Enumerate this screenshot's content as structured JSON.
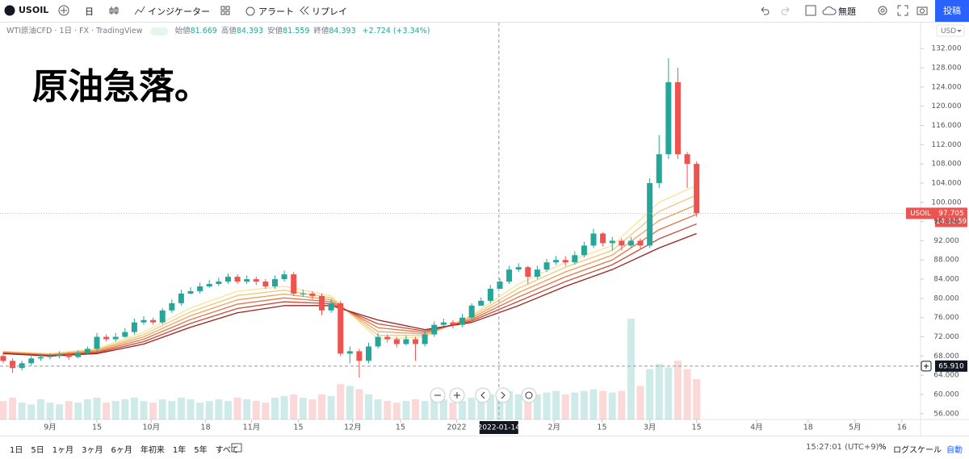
{
  "toolbar": {
    "symbol": "USOIL",
    "interval": "日",
    "indicators": "インジケーター",
    "alert": "アラート",
    "replay": "リプレイ",
    "layout_name": "無題",
    "publish": "投稿"
  },
  "chart_data": {
    "type": "candlestick",
    "instrument": "WTI原油CFD · 1日 · FX · TradingView",
    "ohlc_legend": [
      {
        "label": "始値",
        "value": "81.669"
      },
      {
        "label": "高値",
        "value": "84.393"
      },
      {
        "label": "安値",
        "value": "81.559"
      },
      {
        "label": "終値",
        "value": "84.393"
      }
    ],
    "change": "+2.724 (+3.34%)",
    "annotation": "原油急落。",
    "currency": "USD",
    "x": [
      0,
      1,
      2,
      3,
      4,
      5,
      6,
      7,
      8,
      9,
      10,
      11,
      12,
      13,
      14,
      15,
      16,
      17,
      18,
      19,
      20,
      21,
      22,
      23,
      24,
      25,
      26,
      27,
      28,
      29,
      30,
      31,
      32,
      33,
      34,
      35,
      36,
      37,
      38,
      39,
      40,
      41,
      42,
      43,
      44,
      45,
      46,
      47,
      48,
      49,
      50,
      51,
      52,
      53,
      54,
      55,
      56,
      57,
      58,
      59,
      60,
      61,
      62,
      63,
      64,
      65,
      66,
      67,
      68,
      69,
      70,
      71,
      72,
      73,
      74
    ],
    "open": [
      68,
      67,
      65.5,
      66.5,
      67.5,
      67.8,
      68,
      68.3,
      67.8,
      68.6,
      69.5,
      72,
      71.5,
      72,
      73,
      75,
      75.5,
      75,
      77.5,
      79,
      81,
      81.5,
      82.5,
      83,
      83.5,
      84.5,
      83.5,
      84,
      83.5,
      82.5,
      84,
      85,
      81,
      81,
      80.5,
      77.5,
      79,
      68.5,
      69,
      67,
      70,
      72,
      71.5,
      70.5,
      71.5,
      70.5,
      72.5,
      74.5,
      75,
      74.5,
      76,
      78.5,
      79.5,
      82,
      83.5,
      86,
      86.5,
      84.5,
      86,
      87.5,
      88,
      87.5,
      89,
      91,
      93.5,
      91.5,
      92,
      91,
      92,
      91,
      104,
      110,
      125,
      110,
      108
    ],
    "high": [
      68.8,
      67.5,
      67,
      68,
      68.5,
      68.6,
      69,
      68.8,
      69.2,
      70,
      72.8,
      72.5,
      72.8,
      73.8,
      75.8,
      76.3,
      76,
      78,
      79.8,
      81.8,
      82.3,
      83.3,
      83.8,
      84.3,
      85.2,
      85,
      84.8,
      84.5,
      84,
      84.8,
      85.8,
      85.5,
      81.8,
      81.5,
      81,
      79.8,
      79.5,
      70,
      69.5,
      70.8,
      72.8,
      72.5,
      72,
      72.3,
      72,
      73.2,
      75.2,
      75.8,
      75.5,
      76.8,
      79,
      80.2,
      82.8,
      84.2,
      86.8,
      87.3,
      86.8,
      86.8,
      88.2,
      88.8,
      88.8,
      89.8,
      91.8,
      94.5,
      93.8,
      92.8,
      92.5,
      92.8,
      92.5,
      105,
      114,
      130,
      128,
      110.5,
      108.5
    ],
    "low": [
      66.5,
      64.5,
      65,
      66,
      67,
      67.3,
      67.5,
      67.2,
      67.5,
      68.3,
      69,
      71,
      71,
      71.8,
      72.5,
      74.5,
      74.5,
      74.6,
      77,
      78.5,
      80.8,
      81,
      82.2,
      82.6,
      83,
      83,
      83,
      82.8,
      82,
      82,
      83.5,
      80.5,
      80.3,
      79.8,
      76.5,
      77,
      68,
      66.5,
      63.5,
      66.5,
      69.5,
      70.8,
      69.8,
      70.2,
      67,
      70,
      72,
      74.2,
      73.8,
      74,
      75.5,
      78.5,
      79,
      82.5,
      83,
      85.5,
      83,
      84,
      85.5,
      87,
      86.8,
      87,
      88.5,
      90.5,
      90.8,
      90,
      90,
      90.5,
      90.2,
      90.5,
      103,
      109,
      109,
      103,
      97
    ],
    "close": [
      67,
      65.5,
      66.5,
      67.5,
      67.8,
      68,
      68.3,
      67.8,
      68.6,
      69.5,
      72,
      71.5,
      72,
      73,
      75,
      75.5,
      75,
      77.5,
      79,
      81,
      81.5,
      82.5,
      83,
      83.5,
      84.5,
      83.5,
      84,
      83.5,
      82.5,
      84,
      85,
      81,
      81,
      80.5,
      77.5,
      79,
      68.5,
      69,
      67,
      70,
      72,
      71.5,
      70.5,
      71.5,
      70.5,
      72.5,
      74.5,
      75,
      74.5,
      76,
      78.5,
      79.5,
      82,
      83.5,
      86,
      86.5,
      84.5,
      86,
      87.5,
      88,
      87.5,
      89,
      91,
      93.5,
      91.5,
      92,
      91,
      92,
      91,
      104,
      110,
      125,
      110,
      108,
      97.705
    ],
    "volume": [
      22,
      26,
      20,
      18,
      24,
      20,
      18,
      22,
      20,
      24,
      26,
      20,
      22,
      24,
      26,
      22,
      20,
      24,
      22,
      26,
      24,
      20,
      22,
      24,
      22,
      26,
      24,
      22,
      20,
      26,
      28,
      30,
      26,
      24,
      30,
      28,
      42,
      40,
      36,
      30,
      24,
      22,
      20,
      22,
      24,
      22,
      26,
      24,
      20,
      22,
      26,
      28,
      30,
      32,
      34,
      30,
      28,
      30,
      32,
      34,
      30,
      32,
      34,
      36,
      34,
      32,
      34,
      120,
      40,
      60,
      66,
      62,
      70,
      60,
      48
    ],
    "up_color": "#26a69a",
    "down_color": "#ef5350",
    "ribbon": {
      "x": [
        0,
        5,
        10,
        15,
        20,
        25,
        30,
        35,
        40,
        45,
        50,
        55,
        60,
        65,
        70,
        74
      ],
      "series": [
        {
          "color": "#f7e39a",
          "values": [
            69,
            68.5,
            69.5,
            73,
            78,
            81.5,
            82.5,
            80.5,
            71.5,
            72,
            76.5,
            83,
            87.5,
            91,
            100,
            103.5
          ]
        },
        {
          "color": "#f3c677",
          "values": [
            68.9,
            68.4,
            69.3,
            72.5,
            77.2,
            80.6,
            81.7,
            80.1,
            72.3,
            72.3,
            76.2,
            82.1,
            86.5,
            90,
            98.1,
            101.5
          ]
        },
        {
          "color": "#ee9f5e",
          "values": [
            68.8,
            68.3,
            69.1,
            72,
            76.4,
            79.7,
            80.9,
            79.7,
            73.1,
            72.6,
            75.9,
            81.2,
            85.5,
            89,
            96.2,
            99.5
          ]
        },
        {
          "color": "#e07748",
          "values": [
            68.7,
            68.2,
            68.9,
            71.5,
            75.6,
            78.8,
            80.1,
            79.3,
            73.9,
            72.9,
            75.6,
            80.3,
            84.5,
            88,
            94.3,
            97.5
          ]
        },
        {
          "color": "#c94a36",
          "values": [
            68.6,
            68.1,
            68.7,
            71,
            74.8,
            77.9,
            79.3,
            78.9,
            74.7,
            73.2,
            75.3,
            79.4,
            83.5,
            87,
            92.4,
            95.5
          ]
        },
        {
          "color": "#9e2020",
          "values": [
            68.5,
            68,
            68.5,
            70.5,
            74,
            77,
            78.5,
            78.5,
            75.5,
            73.5,
            75,
            78.5,
            82.5,
            86,
            90.5,
            93.5
          ]
        }
      ]
    },
    "xlim": [
      -0.34,
      97.9
    ],
    "ylim": [
      54.8,
      137.4
    ],
    "yticks": [
      {
        "value": 56,
        "label": "56.000"
      },
      {
        "value": 60,
        "label": "60.000"
      },
      {
        "value": 64,
        "label": "64.000"
      },
      {
        "value": 68,
        "label": "68.000"
      },
      {
        "value": 72,
        "label": "72.000"
      },
      {
        "value": 76,
        "label": "76.000"
      },
      {
        "value": 80,
        "label": "80.000"
      },
      {
        "value": 84,
        "label": "84.000"
      },
      {
        "value": 88,
        "label": "88.000"
      },
      {
        "value": 92,
        "label": "92.000"
      },
      {
        "value": 96,
        "label": "96.000"
      },
      {
        "value": 100,
        "label": "100.000"
      },
      {
        "value": 104,
        "label": "104.000"
      },
      {
        "value": 108,
        "label": "108.000"
      },
      {
        "value": 112,
        "label": "112.000"
      },
      {
        "value": 116,
        "label": "116.000"
      },
      {
        "value": 120,
        "label": "120.000"
      },
      {
        "value": 124,
        "label": "124.000"
      },
      {
        "value": 128,
        "label": "128.000"
      },
      {
        "value": 132,
        "label": "132.000"
      }
    ],
    "xticks": [
      {
        "value": 5,
        "label": "9月"
      },
      {
        "value": 10,
        "label": "15"
      },
      {
        "value": 15.8,
        "label": "10月"
      },
      {
        "value": 21.6,
        "label": "18"
      },
      {
        "value": 26.5,
        "label": "11月"
      },
      {
        "value": 31.5,
        "label": "15"
      },
      {
        "value": 37.3,
        "label": "12月"
      },
      {
        "value": 42.4,
        "label": "15"
      },
      {
        "value": 48.4,
        "label": "2022"
      },
      {
        "value": 58.8,
        "label": "2月"
      },
      {
        "value": 63.9,
        "label": "15"
      },
      {
        "value": 69,
        "label": "3月"
      },
      {
        "value": 74,
        "label": "15"
      },
      {
        "value": 80.4,
        "label": "4月"
      },
      {
        "value": 85.9,
        "label": "18"
      },
      {
        "value": 90.9,
        "label": "5月"
      },
      {
        "value": 95.9,
        "label": "16"
      }
    ],
    "last_price": {
      "value": 97.705,
      "label": "97.705",
      "countdown": "14:32:59",
      "symbol": "USOIL"
    },
    "crosshair": {
      "price": {
        "value": 65.91,
        "label": "65.910"
      },
      "date": {
        "value": 52.9,
        "label": "2022-01-14"
      }
    }
  },
  "bottom_bar": {
    "ranges": [
      "1日",
      "5日",
      "1ヶ月",
      "3ヶ月",
      "6ヶ月",
      "年初来",
      "1年",
      "5年",
      "すべて"
    ],
    "time": "15:27:01 (UTC+9)",
    "percent": "%",
    "log": "ログスケール",
    "auto": "自動"
  }
}
